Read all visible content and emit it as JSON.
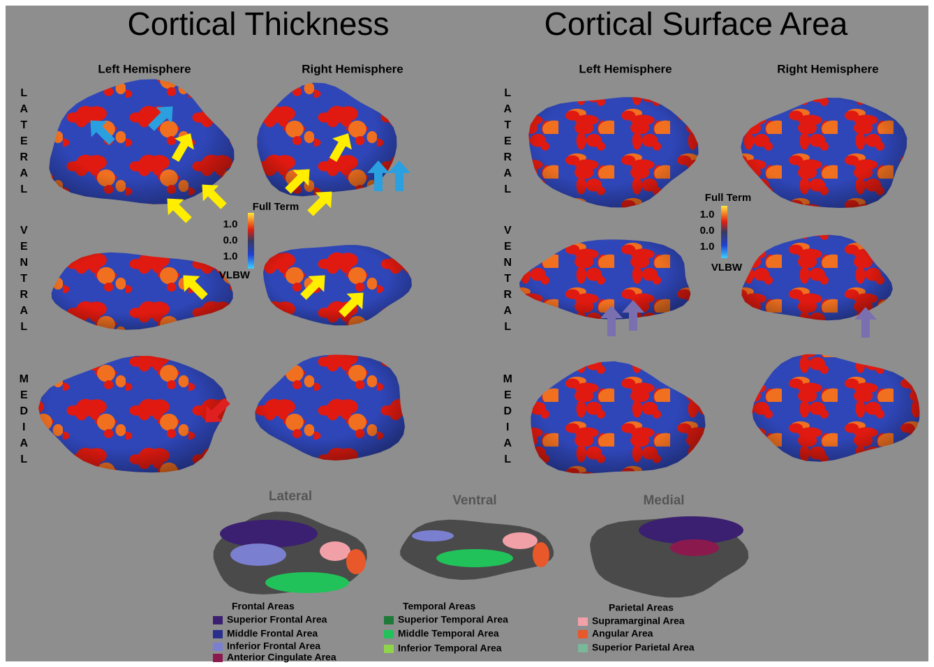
{
  "figure": {
    "panels": [
      {
        "title": "Cortical Thickness",
        "hemispheres": [
          "Left Hemisphere",
          "Right Hemisphere"
        ],
        "views": [
          "LATERAL",
          "VENTRAL",
          "MEDIAL"
        ],
        "colorbar": {
          "top": "Full Term",
          "ticks": [
            "1.0",
            "0.0",
            "1.0"
          ],
          "bottom": "VLBW"
        }
      },
      {
        "title": "Cortical Surface Area",
        "hemispheres": [
          "Left Hemisphere",
          "Right Hemisphere"
        ],
        "views": [
          "LATERAL",
          "VENTRAL",
          "MEDIAL"
        ],
        "colorbar": {
          "top": "Full Term",
          "ticks": [
            "1.0",
            "0.0",
            "1.0"
          ],
          "bottom": "VLBW"
        }
      }
    ],
    "atlas": {
      "views": [
        "Lateral",
        "Ventral",
        "Medial"
      ],
      "groups": [
        {
          "title": "Frontal Areas",
          "areas": [
            {
              "name": "Superior Frontal Area",
              "color": "#3b1f70"
            },
            {
              "name": "Middle Frontal Area",
              "color": "#2b2f8c"
            },
            {
              "name": "Inferior Frontal Area",
              "color": "#7b7fd0"
            },
            {
              "name": "Anterior Cingulate Area",
              "color": "#8a1a4e"
            }
          ]
        },
        {
          "title": "Temporal Areas",
          "areas": [
            {
              "name": "Superior Temporal Area",
              "color": "#1f7a3a"
            },
            {
              "name": "Middle Temporal Area",
              "color": "#22c25a"
            },
            {
              "name": "Inferior Temporal Area",
              "color": "#8fd44a"
            }
          ]
        },
        {
          "title": "Parietal Areas",
          "areas": [
            {
              "name": "Supramarginal Area",
              "color": "#f2a0a8"
            },
            {
              "name": "Angular Area",
              "color": "#e8582a"
            },
            {
              "name": "Superior Parietal Area",
              "color": "#7ab89a"
            }
          ]
        }
      ]
    }
  }
}
